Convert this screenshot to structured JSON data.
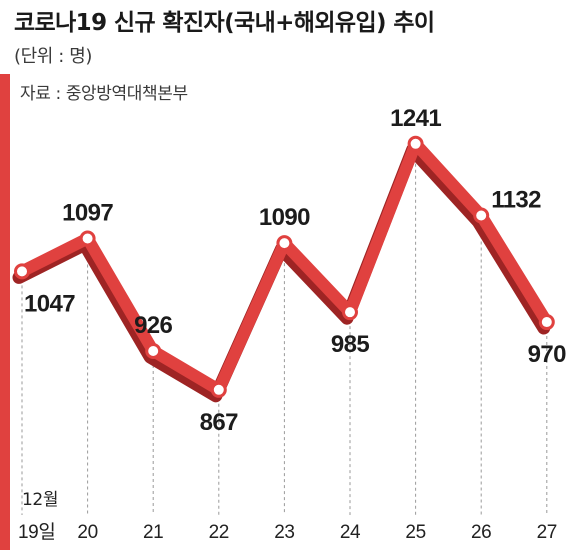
{
  "header": {
    "title": "코로나19 신규 확진자(국내+해외유입) 추이",
    "unit": "(단위 : 명)",
    "source": "자료 : 중앙방역대책본부"
  },
  "chart_data": {
    "type": "line",
    "title": "코로나19 신규 확진자(국내+해외유입) 추이",
    "unit_label": "(단위 : 명)",
    "source": "자료 : 중앙방역대책본부",
    "month_label": "12월",
    "categories": [
      "19일",
      "20",
      "21",
      "22",
      "23",
      "24",
      "25",
      "26",
      "27"
    ],
    "values": [
      1047,
      1097,
      926,
      867,
      1090,
      985,
      1241,
      1132,
      970
    ],
    "ylim": [
      780,
      1300
    ],
    "grid": false,
    "legend": "none"
  },
  "colors": {
    "line": "#e0413f",
    "line_shadow": "#9e2424",
    "marker_fill": "#ffffff",
    "dashed_guide": "#9a9a9a",
    "accent_bar": "#e0413f",
    "text": "#1c1c1c"
  }
}
